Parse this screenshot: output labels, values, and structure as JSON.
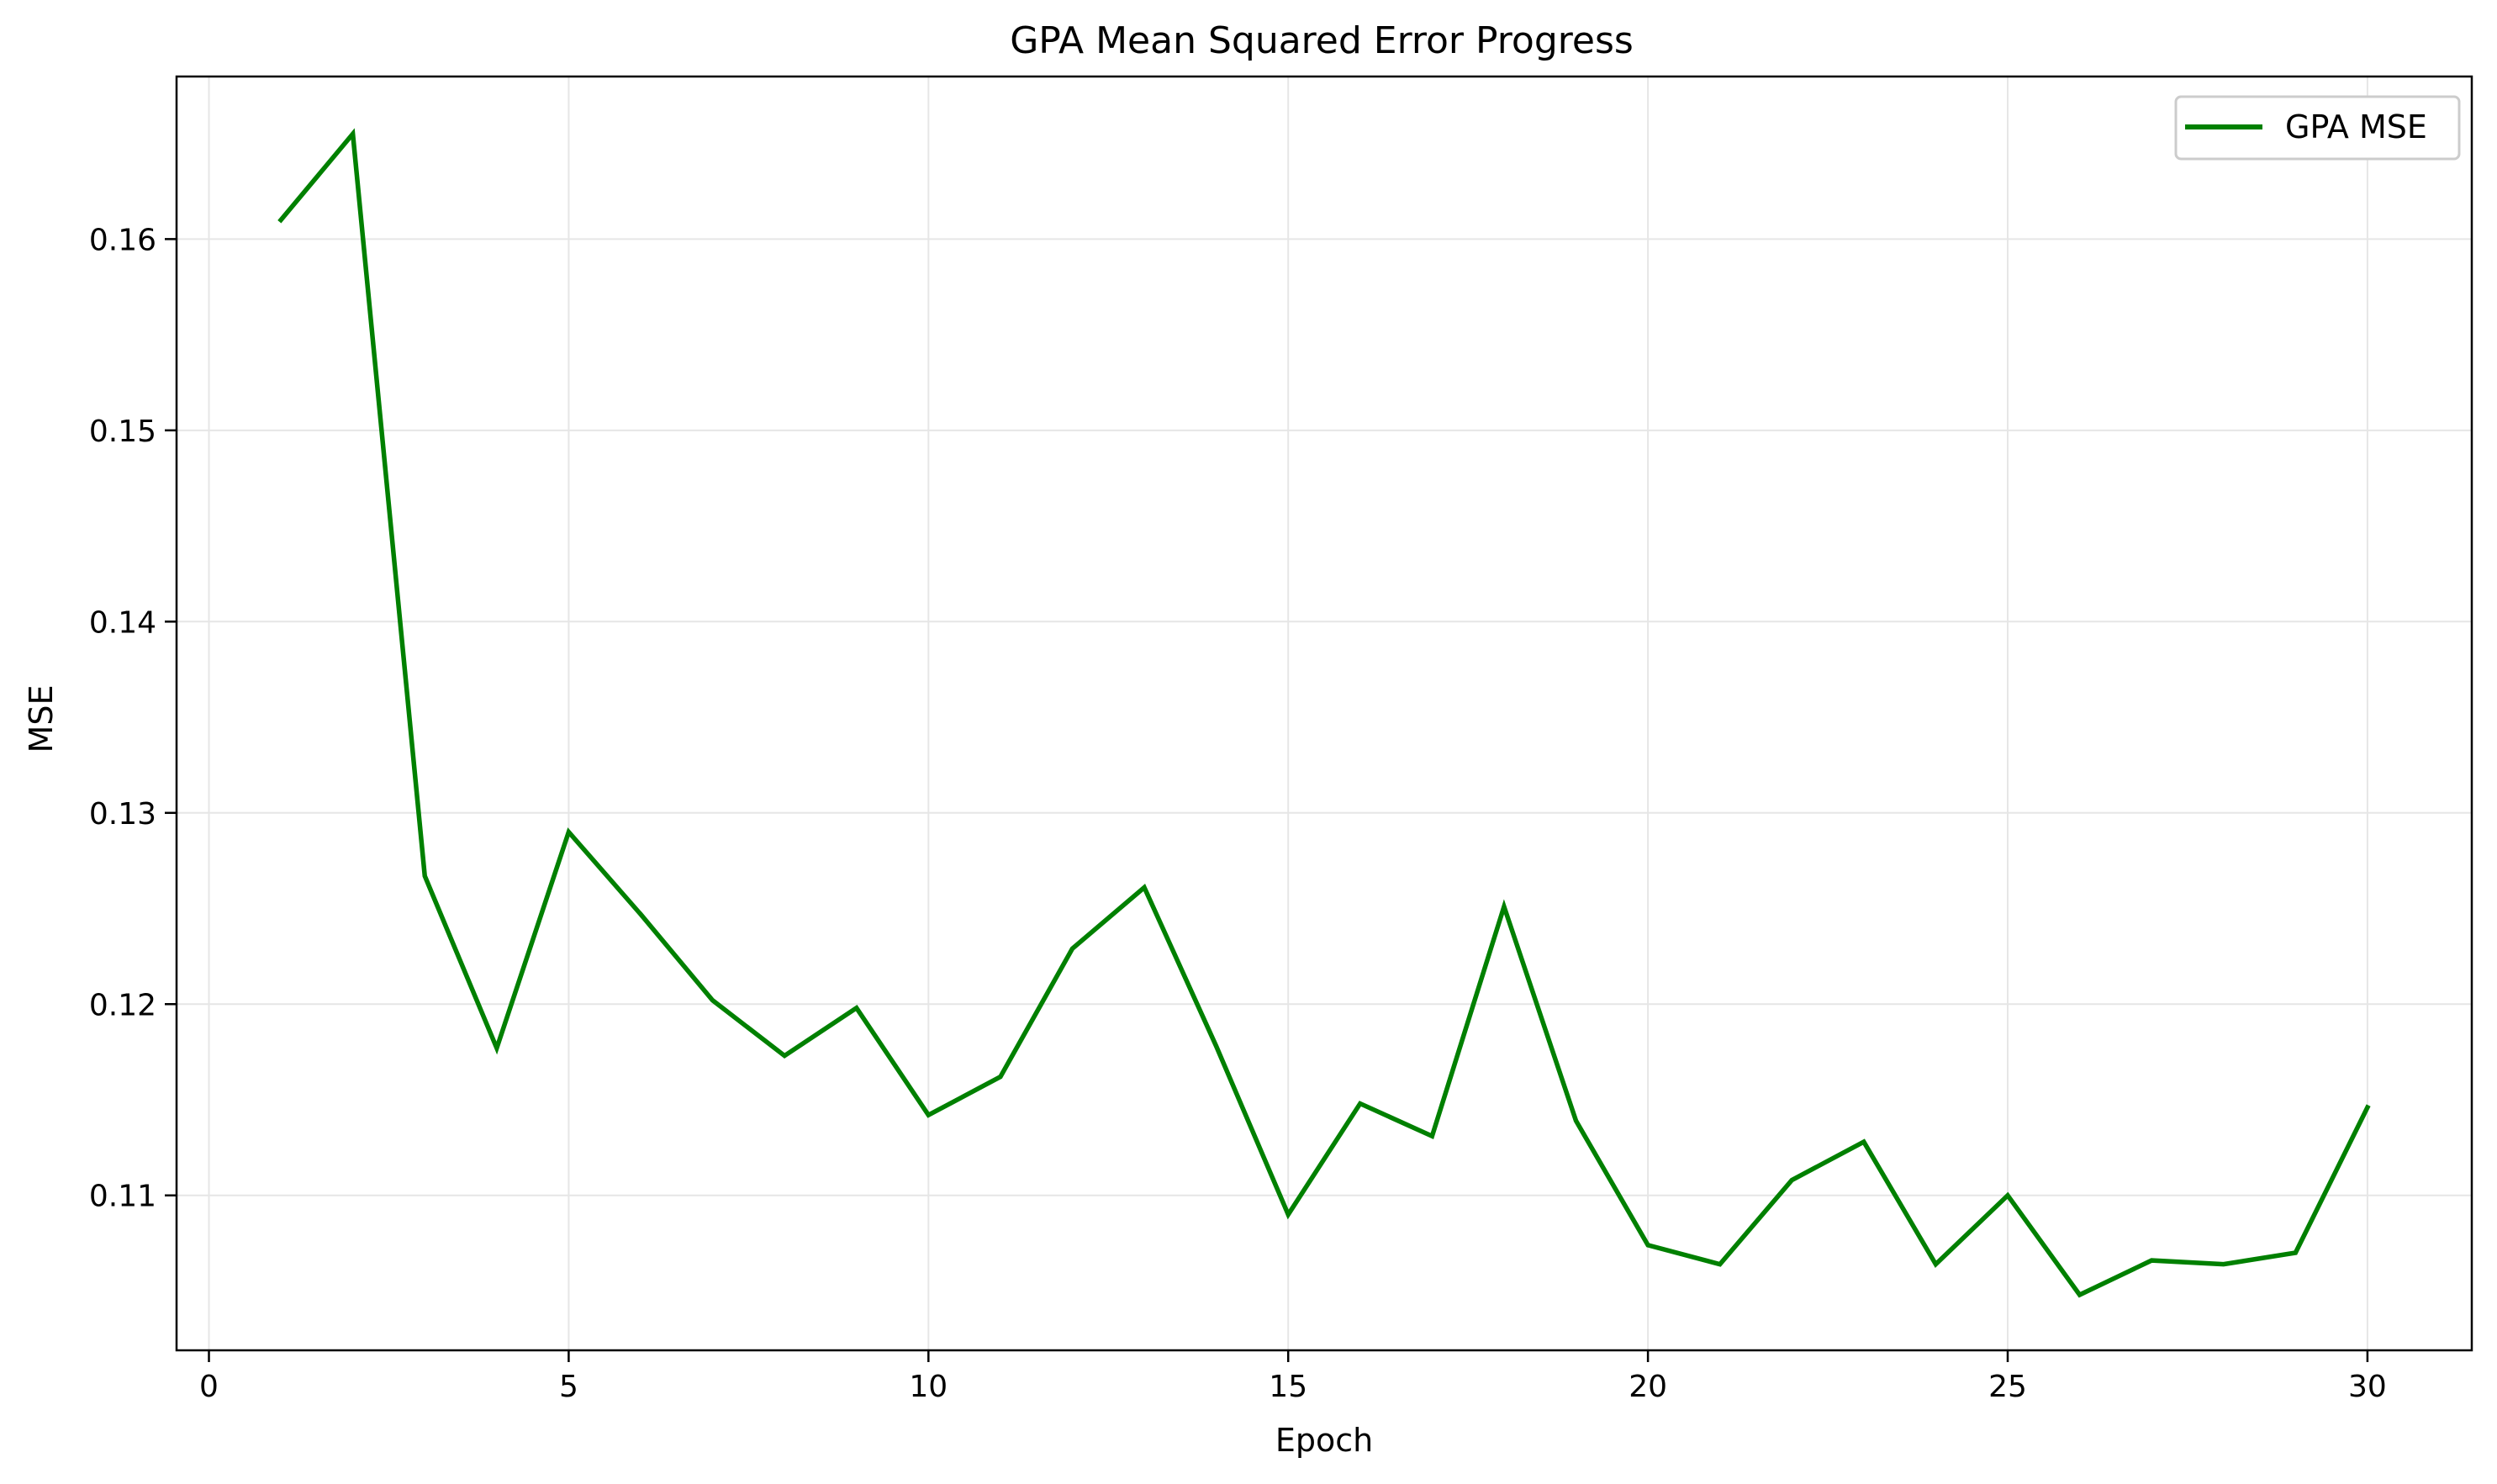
{
  "chart_data": {
    "type": "line",
    "title": "GPA Mean Squared Error Progress",
    "xlabel": "Epoch",
    "ylabel": "MSE",
    "xlim": [
      -0.45,
      31.45
    ],
    "ylim": [
      0.1019,
      0.1685
    ],
    "xticks": [
      0,
      5,
      10,
      15,
      20,
      25,
      30
    ],
    "xtick_labels": [
      "0",
      "5",
      "10",
      "15",
      "20",
      "25",
      "30"
    ],
    "yticks": [
      0.11,
      0.12,
      0.13,
      0.14,
      0.15,
      0.16
    ],
    "ytick_labels": [
      "0.11",
      "0.12",
      "0.13",
      "0.14",
      "0.15",
      "0.16"
    ],
    "grid": true,
    "legend_position": "top-right",
    "series": [
      {
        "name": "GPA MSE",
        "color": "#008000",
        "x": [
          1,
          2,
          3,
          4,
          5,
          6,
          7,
          8,
          9,
          10,
          11,
          12,
          13,
          14,
          15,
          16,
          17,
          18,
          19,
          20,
          21,
          22,
          23,
          24,
          25,
          26,
          27,
          28,
          29,
          30
        ],
        "y": [
          0.161,
          0.1655,
          0.1267,
          0.1177,
          0.129,
          0.1247,
          0.1202,
          0.1173,
          0.1198,
          0.1142,
          0.1162,
          0.1229,
          0.1261,
          0.1178,
          0.109,
          0.1148,
          0.1131,
          0.1251,
          0.1139,
          0.1074,
          0.1064,
          0.1108,
          0.1128,
          0.1064,
          0.11,
          0.1048,
          0.1066,
          0.1064,
          0.107,
          0.1146
        ]
      }
    ]
  }
}
